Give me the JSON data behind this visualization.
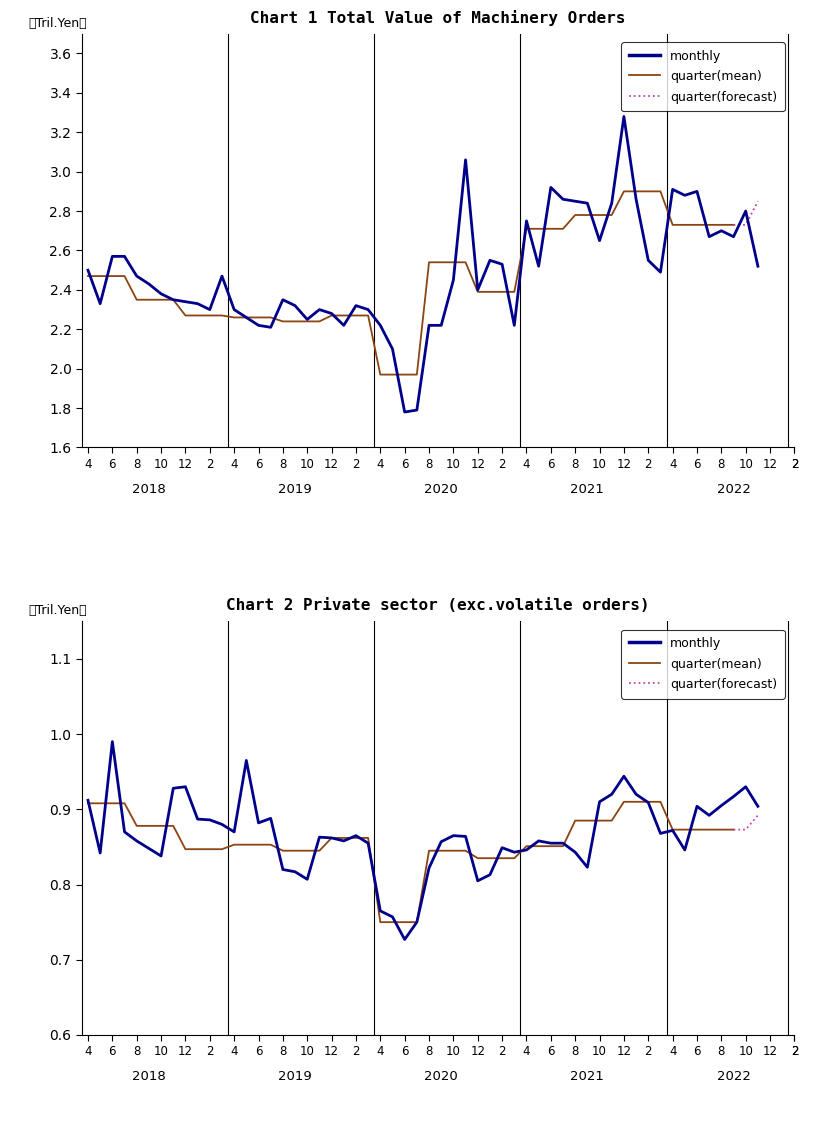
{
  "chart1_title": "Chart 1 Total Value of Machinery Orders",
  "chart2_title": "Chart 2 Private sector (exc.volatile orders)",
  "ylabel": "（Tril.Yen）",
  "chart1_monthly": [
    2.5,
    2.33,
    2.57,
    2.57,
    2.47,
    2.43,
    2.38,
    2.35,
    2.34,
    2.33,
    2.3,
    2.47,
    2.3,
    2.26,
    2.22,
    2.21,
    2.35,
    2.32,
    2.25,
    2.3,
    2.28,
    2.22,
    2.32,
    2.3,
    2.22,
    2.1,
    1.78,
    1.79,
    2.22,
    2.22,
    2.45,
    3.06,
    2.4,
    2.55,
    2.53,
    2.22,
    2.75,
    2.52,
    2.92,
    2.86,
    2.85,
    2.84,
    2.65,
    2.84,
    3.28,
    2.86,
    2.55,
    2.49,
    2.91,
    2.88,
    2.9,
    2.67,
    2.7,
    2.67,
    2.8,
    2.52
  ],
  "chart1_quarter_mean": [
    2.47,
    2.47,
    2.47,
    2.47,
    2.35,
    2.35,
    2.35,
    2.35,
    2.27,
    2.27,
    2.27,
    2.27,
    2.26,
    2.26,
    2.26,
    2.26,
    2.24,
    2.24,
    2.24,
    2.24,
    2.27,
    2.27,
    2.27,
    2.27,
    1.97,
    1.97,
    1.97,
    1.97,
    2.54,
    2.54,
    2.54,
    2.54,
    2.39,
    2.39,
    2.39,
    2.39,
    2.71,
    2.71,
    2.71,
    2.71,
    2.78,
    2.78,
    2.78,
    2.78,
    2.9,
    2.9,
    2.9,
    2.9,
    2.73,
    2.73,
    2.73,
    2.73,
    2.73,
    2.73,
    null,
    null
  ],
  "chart1_quarter_forecast": [
    null,
    null,
    null,
    null,
    null,
    null,
    null,
    null,
    null,
    null,
    null,
    null,
    null,
    null,
    null,
    null,
    null,
    null,
    null,
    null,
    null,
    null,
    null,
    null,
    null,
    null,
    null,
    null,
    null,
    null,
    null,
    null,
    null,
    null,
    null,
    null,
    null,
    null,
    null,
    null,
    null,
    null,
    null,
    null,
    null,
    null,
    null,
    null,
    null,
    null,
    null,
    null,
    null,
    2.73,
    2.73,
    2.85
  ],
  "chart2_monthly": [
    0.912,
    0.842,
    0.99,
    0.87,
    0.858,
    0.848,
    0.838,
    0.928,
    0.93,
    0.887,
    0.886,
    0.88,
    0.87,
    0.965,
    0.882,
    0.888,
    0.82,
    0.817,
    0.807,
    0.863,
    0.862,
    0.858,
    0.865,
    0.855,
    0.765,
    0.757,
    0.727,
    0.75,
    0.822,
    0.857,
    0.865,
    0.864,
    0.805,
    0.813,
    0.849,
    0.843,
    0.846,
    0.858,
    0.855,
    0.855,
    0.843,
    0.823,
    0.91,
    0.92,
    0.944,
    0.92,
    0.909,
    0.868,
    0.872,
    0.846,
    0.904,
    0.892,
    0.905,
    0.917,
    0.93,
    0.904
  ],
  "chart2_quarter_mean": [
    0.908,
    0.908,
    0.908,
    0.908,
    0.878,
    0.878,
    0.878,
    0.878,
    0.847,
    0.847,
    0.847,
    0.847,
    0.853,
    0.853,
    0.853,
    0.853,
    0.845,
    0.845,
    0.845,
    0.845,
    0.862,
    0.862,
    0.862,
    0.862,
    0.75,
    0.75,
    0.75,
    0.75,
    0.845,
    0.845,
    0.845,
    0.845,
    0.835,
    0.835,
    0.835,
    0.835,
    0.851,
    0.851,
    0.851,
    0.851,
    0.885,
    0.885,
    0.885,
    0.885,
    0.91,
    0.91,
    0.91,
    0.91,
    0.873,
    0.873,
    0.873,
    0.873,
    0.873,
    0.873,
    null,
    null
  ],
  "chart2_quarter_forecast": [
    null,
    null,
    null,
    null,
    null,
    null,
    null,
    null,
    null,
    null,
    null,
    null,
    null,
    null,
    null,
    null,
    null,
    null,
    null,
    null,
    null,
    null,
    null,
    null,
    null,
    null,
    null,
    null,
    null,
    null,
    null,
    null,
    null,
    null,
    null,
    null,
    null,
    null,
    null,
    null,
    null,
    null,
    null,
    null,
    null,
    null,
    null,
    null,
    null,
    null,
    null,
    null,
    null,
    0.873,
    0.873,
    0.892
  ],
  "year_labels": [
    "2018",
    "2019",
    "2020",
    "2021",
    "2022"
  ],
  "chart1_ylim": [
    1.6,
    3.7
  ],
  "chart1_yticks": [
    1.6,
    1.8,
    2.0,
    2.2,
    2.4,
    2.6,
    2.8,
    3.0,
    3.2,
    3.4,
    3.6
  ],
  "chart2_ylim": [
    0.6,
    1.15
  ],
  "chart2_yticks": [
    0.6,
    0.7,
    0.8,
    0.9,
    1.0,
    1.1
  ],
  "monthly_color": "#00008B",
  "quarter_mean_color": "#8B4513",
  "quarter_forecast_color": "#CC44AA",
  "monthly_lw": 2.0,
  "quarter_mean_lw": 1.3,
  "quarter_forecast_lw": 1.3
}
